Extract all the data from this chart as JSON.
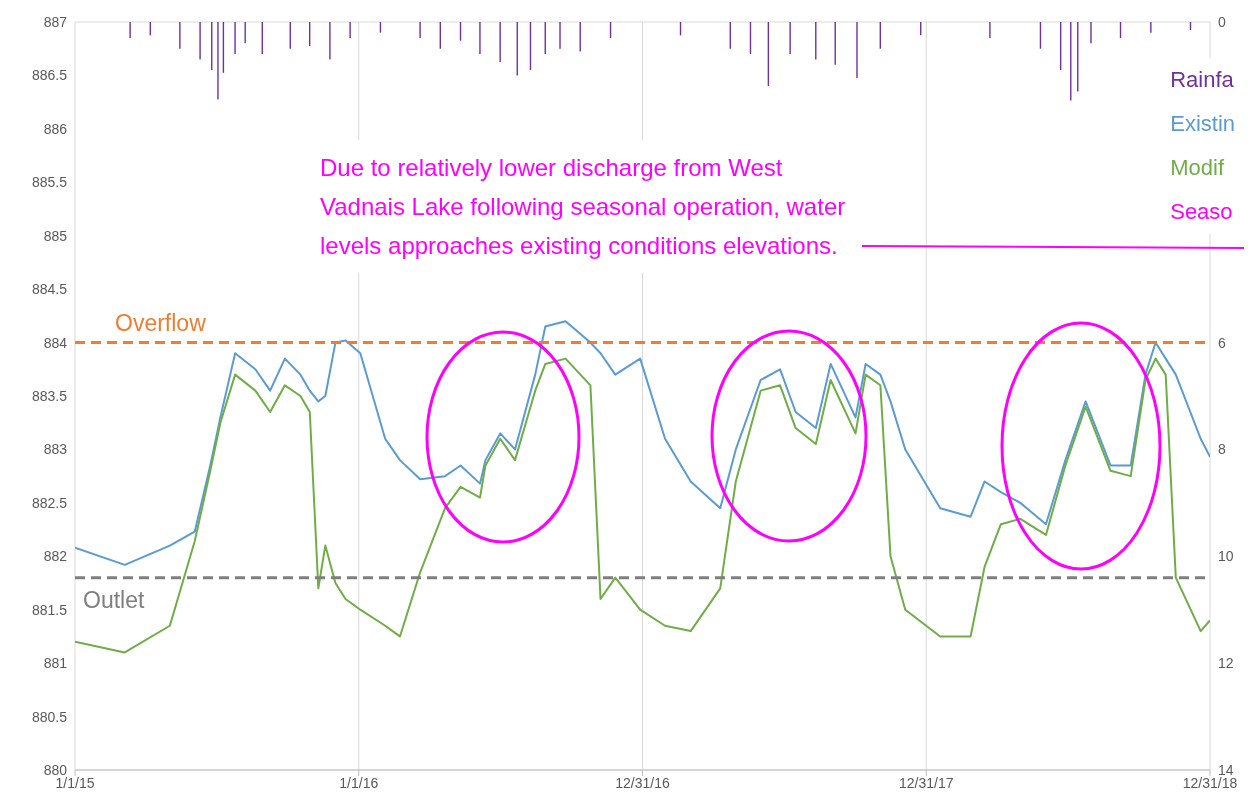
{
  "chart_data": {
    "type": "line",
    "xlim": [
      "2015-01-01",
      "2018-12-31"
    ],
    "xticks": [
      {
        "value": "2015-01-01",
        "label": "1/1/15"
      },
      {
        "value": "2016-01-01",
        "label": "1/1/16"
      },
      {
        "value": "2016-12-31",
        "label": "12/31/16"
      },
      {
        "value": "2017-12-31",
        "label": "12/31/17"
      },
      {
        "value": "2018-12-31",
        "label": "12/31/18"
      }
    ],
    "ylim": [
      880,
      887
    ],
    "yticks": [
      880,
      880.5,
      881,
      881.5,
      882,
      882.5,
      883,
      883.5,
      884,
      884.5,
      885,
      885.5,
      886,
      886.5,
      887
    ],
    "y2lim": [
      14,
      0
    ],
    "y2ticks": [
      0,
      6,
      8,
      10,
      12,
      14
    ],
    "grid": true,
    "legend": "top right",
    "series": [
      {
        "name": "Rainfa",
        "type": "bar",
        "axis": "y2",
        "color": "#7030a0",
        "x": [
          "2015-03-13",
          "2015-04-08",
          "2015-05-16",
          "2015-06-11",
          "2015-06-26",
          "2015-07-04",
          "2015-07-11",
          "2015-07-26",
          "2015-08-08",
          "2015-08-30",
          "2015-10-05",
          "2015-10-30",
          "2015-11-25",
          "2015-12-21",
          "2016-01-29",
          "2016-03-20",
          "2016-04-15",
          "2016-05-11",
          "2016-06-05",
          "2016-07-01",
          "2016-07-23",
          "2016-08-09",
          "2016-08-28",
          "2016-09-16",
          "2016-10-12",
          "2016-11-20",
          "2017-02-18",
          "2017-04-23",
          "2017-05-19",
          "2017-06-11",
          "2017-07-09",
          "2017-08-11",
          "2017-09-05",
          "2017-10-03",
          "2017-11-02",
          "2017-12-24",
          "2018-03-23",
          "2018-05-27",
          "2018-06-22",
          "2018-07-05",
          "2018-07-14",
          "2018-07-31",
          "2018-09-07",
          "2018-10-16",
          "2018-12-06"
        ],
        "values": [
          0.3,
          0.25,
          0.5,
          0.7,
          0.9,
          1.45,
          0.95,
          0.6,
          0.4,
          0.6,
          0.5,
          0.45,
          0.7,
          0.3,
          0.2,
          0.3,
          0.5,
          0.35,
          0.6,
          0.75,
          1,
          0.9,
          0.6,
          0.5,
          0.55,
          0.3,
          0.25,
          0.5,
          0.6,
          1.2,
          0.6,
          0.7,
          0.8,
          1.05,
          0.5,
          0.25,
          0.3,
          0.5,
          0.9,
          1.47,
          1.3,
          0.4,
          0.3,
          0.2,
          0.15
        ]
      },
      {
        "name": "Existin",
        "type": "line",
        "color": "#5b9bd5",
        "x": [
          "2015-01-01",
          "2015-03-06",
          "2015-05-03",
          "2015-06-04",
          "2015-06-24",
          "2015-07-07",
          "2015-07-26",
          "2015-08-21",
          "2015-09-09",
          "2015-09-28",
          "2015-10-18",
          "2015-10-30",
          "2015-11-10",
          "2015-11-19",
          "2015-12-02",
          "2015-12-15",
          "2016-01-03",
          "2016-02-04",
          "2016-02-23",
          "2016-03-20",
          "2016-04-21",
          "2016-05-11",
          "2016-06-05",
          "2016-06-12",
          "2016-07-01",
          "2016-07-20",
          "2016-08-15",
          "2016-08-28",
          "2016-09-23",
          "2016-10-25",
          "2016-11-07",
          "2016-11-26",
          "2016-12-28",
          "2017-01-29",
          "2017-03-03",
          "2017-04-10",
          "2017-04-30",
          "2017-06-01",
          "2017-06-26",
          "2017-07-16",
          "2017-08-11",
          "2017-08-30",
          "2017-10-01",
          "2017-10-14",
          "2017-11-02",
          "2017-11-15",
          "2017-12-04",
          "2018-01-18",
          "2018-02-26",
          "2018-03-16",
          "2018-04-06",
          "2018-05-01",
          "2018-06-03",
          "2018-06-28",
          "2018-07-24",
          "2018-08-25",
          "2018-09-20",
          "2018-10-09",
          "2018-10-22",
          "2018-11-04",
          "2018-11-17",
          "2018-12-19",
          "2018-12-31"
        ],
        "values": [
          882.08,
          881.92,
          882.1,
          882.23,
          882.85,
          883.3,
          883.9,
          883.75,
          883.55,
          883.85,
          883.7,
          883.55,
          883.45,
          883.5,
          884,
          884.02,
          883.9,
          883.1,
          882.9,
          882.72,
          882.75,
          882.85,
          882.68,
          882.9,
          883.15,
          883,
          883.7,
          884.15,
          884.2,
          884,
          883.9,
          883.7,
          883.85,
          883.1,
          882.7,
          882.45,
          883,
          883.65,
          883.75,
          883.35,
          883.2,
          883.8,
          883.3,
          883.8,
          883.7,
          883.45,
          883,
          882.45,
          882.37,
          882.7,
          882.6,
          882.5,
          882.3,
          882.9,
          883.45,
          882.85,
          882.85,
          883.7,
          884,
          883.85,
          883.7,
          883.1,
          882.93
        ]
      },
      {
        "name": "Modif",
        "type": "line",
        "color": "#70ad47",
        "x": [
          "2015-01-01",
          "2015-03-06",
          "2015-05-03",
          "2015-06-04",
          "2015-06-24",
          "2015-07-07",
          "2015-07-26",
          "2015-08-21",
          "2015-09-09",
          "2015-09-28",
          "2015-10-18",
          "2015-10-30",
          "2015-11-10",
          "2015-11-19",
          "2015-12-02",
          "2015-12-15",
          "2016-01-03",
          "2016-02-04",
          "2016-02-23",
          "2016-03-20",
          "2016-04-21",
          "2016-05-11",
          "2016-06-05",
          "2016-06-12",
          "2016-07-01",
          "2016-07-20",
          "2016-08-15",
          "2016-08-28",
          "2016-09-23",
          "2016-10-25",
          "2016-11-07",
          "2016-11-26",
          "2016-12-28",
          "2017-01-29",
          "2017-03-03",
          "2017-04-10",
          "2017-04-30",
          "2017-06-01",
          "2017-06-26",
          "2017-07-16",
          "2017-08-11",
          "2017-08-30",
          "2017-10-01",
          "2017-10-14",
          "2017-11-02",
          "2017-11-15",
          "2017-12-04",
          "2018-01-18",
          "2018-02-26",
          "2018-03-16",
          "2018-04-06",
          "2018-05-01",
          "2018-06-03",
          "2018-06-28",
          "2018-07-24",
          "2018-08-25",
          "2018-09-20",
          "2018-10-09",
          "2018-10-22",
          "2018-11-04",
          "2018-11-17",
          "2018-12-19",
          "2018-12-31"
        ],
        "values": [
          881.2,
          881.1,
          881.35,
          882.14,
          882.8,
          883.25,
          883.7,
          883.55,
          883.35,
          883.6,
          883.5,
          883.35,
          881.7,
          882.1,
          881.75,
          881.6,
          881.5,
          881.35,
          881.25,
          881.85,
          882.45,
          882.65,
          882.55,
          882.85,
          883.1,
          882.9,
          883.55,
          883.8,
          883.85,
          883.6,
          881.6,
          881.8,
          881.5,
          881.35,
          881.3,
          881.7,
          882.7,
          883.55,
          883.6,
          883.2,
          883.05,
          883.65,
          883.15,
          883.7,
          883.6,
          882,
          881.5,
          881.25,
          881.25,
          881.9,
          882.3,
          882.35,
          882.2,
          882.85,
          883.4,
          882.8,
          882.75,
          883.65,
          883.85,
          883.7,
          881.8,
          881.3,
          881.4
        ]
      }
    ],
    "ref_lines": [
      {
        "axis": "y",
        "value": 884,
        "label": "Overflow",
        "color": "#ed7d31",
        "line_style": "dashed"
      },
      {
        "axis": "y",
        "value": 881.8,
        "label": "Outlet",
        "color": "#7f7f7f",
        "line_style": "dashed"
      }
    ],
    "annotations": [
      "Due to relatively lower discharge from West Vadnais Lake following seasonal operation, water levels approaches existing conditions elevations.",
      "Seaso"
    ]
  }
}
